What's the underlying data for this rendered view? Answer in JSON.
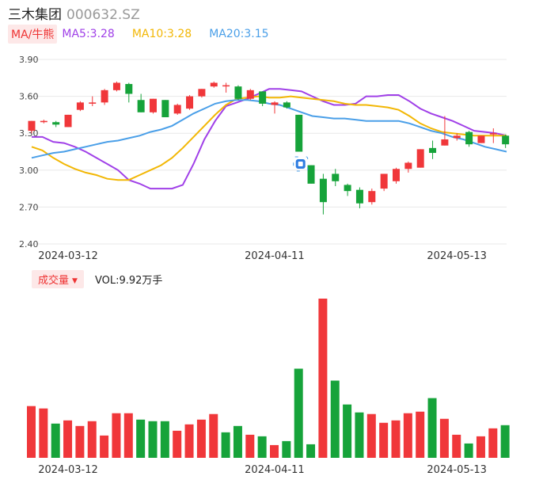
{
  "header": {
    "name": "三木集团",
    "code": "000632.SZ"
  },
  "ma_bar": {
    "tag": "MA/牛熊",
    "items": [
      {
        "label": "MA5:3.28",
        "color": "#a040e8"
      },
      {
        "label": "MA10:3.28",
        "color": "#f2b705"
      },
      {
        "label": "MA20:3.15",
        "color": "#4a9fe8"
      }
    ]
  },
  "vol_bar": {
    "tag": "成交量",
    "text": "VOL:9.92万手"
  },
  "colors": {
    "up": "#f0373a",
    "down": "#16a33a",
    "grid": "#e8e8e8"
  },
  "chart_data": {
    "type": "candlestick",
    "price_axis": {
      "ylim": [
        2.4,
        3.9
      ],
      "ticks": [
        "3.90",
        "3.60",
        "3.30",
        "3.00",
        "2.70",
        "2.40"
      ]
    },
    "date_ticks": [
      {
        "label": "2024-03-12",
        "index": 0
      },
      {
        "label": "2024-04-11",
        "index": 17
      },
      {
        "label": "2024-05-13",
        "index": 32
      }
    ],
    "candles": [
      [
        3.32,
        3.4,
        3.4,
        3.3
      ],
      [
        3.39,
        3.4,
        3.41,
        3.38
      ],
      [
        3.39,
        3.37,
        3.4,
        3.35
      ],
      [
        3.35,
        3.45,
        3.45,
        3.35
      ],
      [
        3.49,
        3.55,
        3.56,
        3.48
      ],
      [
        3.54,
        3.55,
        3.6,
        3.52
      ],
      [
        3.55,
        3.65,
        3.66,
        3.53
      ],
      [
        3.65,
        3.71,
        3.72,
        3.64
      ],
      [
        3.7,
        3.62,
        3.71,
        3.55
      ],
      [
        3.57,
        3.47,
        3.62,
        3.47
      ],
      [
        3.47,
        3.58,
        3.58,
        3.46
      ],
      [
        3.57,
        3.43,
        3.57,
        3.43
      ],
      [
        3.46,
        3.53,
        3.54,
        3.45
      ],
      [
        3.5,
        3.6,
        3.61,
        3.49
      ],
      [
        3.6,
        3.66,
        3.66,
        3.59
      ],
      [
        3.68,
        3.71,
        3.72,
        3.67
      ],
      [
        3.69,
        3.69,
        3.71,
        3.63
      ],
      [
        3.68,
        3.58,
        3.69,
        3.57
      ],
      [
        3.58,
        3.65,
        3.66,
        3.57
      ],
      [
        3.64,
        3.54,
        3.64,
        3.52
      ],
      [
        3.53,
        3.55,
        3.56,
        3.46
      ],
      [
        3.55,
        3.51,
        3.56,
        3.5
      ],
      [
        3.45,
        3.15,
        3.45,
        3.15
      ],
      [
        3.04,
        2.89,
        3.04,
        2.89
      ],
      [
        2.93,
        2.74,
        2.97,
        2.64
      ],
      [
        2.97,
        2.91,
        3.01,
        2.87
      ],
      [
        2.88,
        2.83,
        2.89,
        2.79
      ],
      [
        2.84,
        2.73,
        2.86,
        2.69
      ],
      [
        2.74,
        2.83,
        2.85,
        2.72
      ],
      [
        2.85,
        2.97,
        2.97,
        2.83
      ],
      [
        2.91,
        3.01,
        3.02,
        2.89
      ],
      [
        3.01,
        3.06,
        3.07,
        2.98
      ],
      [
        3.02,
        3.17,
        3.17,
        3.02
      ]
    ],
    "candles_tail": [
      [
        3.18,
        3.14,
        3.24,
        3.09
      ],
      [
        3.2,
        3.25,
        3.44,
        3.2
      ],
      [
        3.26,
        3.28,
        3.3,
        3.24
      ],
      [
        3.31,
        3.21,
        3.32,
        3.19
      ],
      [
        3.22,
        3.28,
        3.28,
        3.22
      ],
      [
        3.29,
        3.3,
        3.34,
        3.22
      ],
      [
        3.28,
        3.21,
        3.29,
        3.18
      ]
    ],
    "ma5": [
      3.27,
      3.27,
      3.23,
      3.22,
      3.19,
      3.15,
      3.1,
      3.05,
      3.0,
      2.92,
      2.89,
      2.85,
      2.85,
      2.85,
      2.88,
      3.05,
      3.25,
      3.4,
      3.52,
      3.55,
      3.58,
      3.62,
      3.66,
      3.66,
      3.65,
      3.64,
      3.6,
      3.56,
      3.53,
      3.53,
      3.54,
      3.6,
      3.6,
      3.61,
      3.61,
      3.56,
      3.5,
      3.46,
      3.43,
      3.4,
      3.36,
      3.32,
      3.31,
      3.3,
      3.28
    ],
    "ma10": [
      3.19,
      3.16,
      3.1,
      3.05,
      3.01,
      2.98,
      2.96,
      2.93,
      2.92,
      2.92,
      2.96,
      3.0,
      3.04,
      3.1,
      3.18,
      3.27,
      3.36,
      3.45,
      3.53,
      3.58,
      3.59,
      3.6,
      3.59,
      3.59,
      3.6,
      3.59,
      3.58,
      3.57,
      3.56,
      3.54,
      3.53,
      3.53,
      3.52,
      3.51,
      3.49,
      3.44,
      3.38,
      3.34,
      3.31,
      3.3,
      3.29,
      3.28,
      3.28,
      3.28,
      3.28
    ],
    "ma20": [
      3.1,
      3.12,
      3.14,
      3.15,
      3.17,
      3.19,
      3.21,
      3.23,
      3.24,
      3.26,
      3.28,
      3.31,
      3.33,
      3.36,
      3.41,
      3.46,
      3.5,
      3.54,
      3.56,
      3.57,
      3.57,
      3.56,
      3.54,
      3.53,
      3.5,
      3.47,
      3.44,
      3.43,
      3.42,
      3.42,
      3.41,
      3.4,
      3.4,
      3.4,
      3.4,
      3.38,
      3.35,
      3.32,
      3.3,
      3.27,
      3.25,
      3.22,
      3.19,
      3.17,
      3.15
    ],
    "volume": {
      "values": [
        6.5,
        6.2,
        4.3,
        4.7,
        4.0,
        4.6,
        2.8,
        5.6,
        5.6,
        4.8,
        4.6,
        4.6,
        3.4,
        4.2,
        4.8,
        5.5,
        3.2,
        4.0,
        2.9,
        2.7,
        1.6,
        2.1,
        11.2,
        1.7,
        20.0,
        9.7,
        6.7,
        5.7,
        5.5,
        4.4,
        4.7,
        5.6,
        5.8,
        7.5,
        4.9,
        2.9,
        1.8,
        2.7,
        3.7,
        4.1
      ],
      "colors": [
        "up",
        "up",
        "down",
        "up",
        "up",
        "up",
        "up",
        "up",
        "up",
        "down",
        "down",
        "down",
        "up",
        "up",
        "up",
        "up",
        "down",
        "down",
        "up",
        "down",
        "up",
        "down",
        "down",
        "down",
        "up",
        "down",
        "down",
        "down",
        "up",
        "up",
        "up",
        "up",
        "up",
        "down",
        "up",
        "up",
        "down",
        "up",
        "up",
        "down"
      ]
    }
  }
}
